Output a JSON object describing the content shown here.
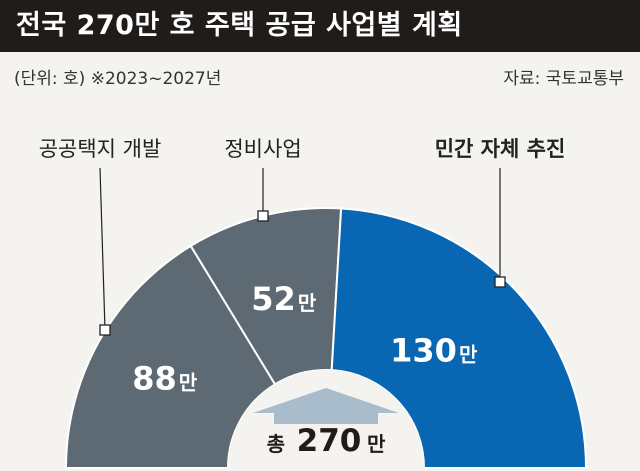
{
  "header": {
    "title": "전국 270만 호 주택 공급 사업별 계획",
    "unit_note": "(단위: 호)",
    "period_note": "※2023~2027년",
    "source": "자료: 국토교통부"
  },
  "total": {
    "label": "총",
    "value": "270",
    "unit": "만"
  },
  "colors": {
    "public_land": "#5e6a73",
    "redevelopment": "#5e6a73",
    "private": "#0866b3",
    "house_icon": "#a9bccb",
    "title_bg": "#1f1c1a",
    "background": "#f4f3ef"
  },
  "chart_data": {
    "type": "pie",
    "style": "semi-donut",
    "unit": "만 호",
    "total": 270,
    "title": "전국 270만 호 주택 공급 사업별 계획",
    "slices": [
      {
        "label": "공공택지 개발",
        "value": 88,
        "display": "88",
        "unit": "만",
        "color": "#5e6a73",
        "label_bold": false
      },
      {
        "label": "정비사업",
        "value": 52,
        "display": "52",
        "unit": "만",
        "color": "#5e6a73",
        "label_bold": false
      },
      {
        "label": "민간 자체 추진",
        "value": 130,
        "display": "130",
        "unit": "만",
        "color": "#0866b3",
        "label_bold": true
      }
    ]
  }
}
